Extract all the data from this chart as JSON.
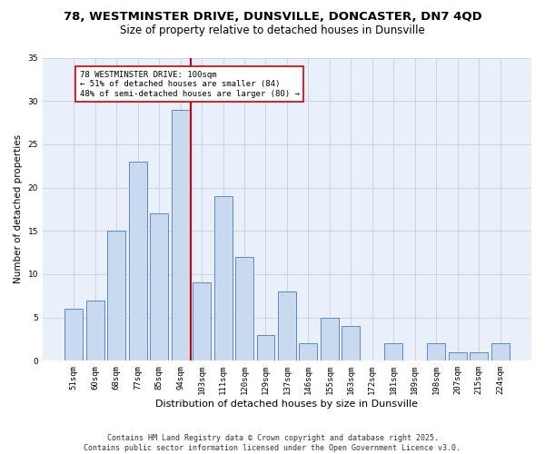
{
  "title_line1": "78, WESTMINSTER DRIVE, DUNSVILLE, DONCASTER, DN7 4QD",
  "title_line2": "Size of property relative to detached houses in Dunsville",
  "xlabel": "Distribution of detached houses by size in Dunsville",
  "ylabel": "Number of detached properties",
  "categories": [
    "51sqm",
    "60sqm",
    "68sqm",
    "77sqm",
    "85sqm",
    "94sqm",
    "103sqm",
    "111sqm",
    "120sqm",
    "129sqm",
    "137sqm",
    "146sqm",
    "155sqm",
    "163sqm",
    "172sqm",
    "181sqm",
    "189sqm",
    "198sqm",
    "207sqm",
    "215sqm",
    "224sqm"
  ],
  "values": [
    6,
    7,
    15,
    23,
    17,
    29,
    9,
    19,
    12,
    3,
    8,
    2,
    5,
    4,
    0,
    2,
    0,
    2,
    1,
    1,
    2
  ],
  "bar_color": "#c9d9f0",
  "bar_edge_color": "#5b8ac7",
  "vline_color": "#cc0000",
  "annotation_text": "78 WESTMINSTER DRIVE: 100sqm\n← 51% of detached houses are smaller (84)\n48% of semi-detached houses are larger (80) →",
  "annotation_box_color": "#ffffff",
  "annotation_box_edge": "#cc0000",
  "ylim": [
    0,
    35
  ],
  "yticks": [
    0,
    5,
    10,
    15,
    20,
    25,
    30,
    35
  ],
  "footer": "Contains HM Land Registry data © Crown copyright and database right 2025.\nContains public sector information licensed under the Open Government Licence v3.0.",
  "background_color": "#ffffff",
  "plot_bg_color": "#eaf0fa",
  "grid_color": "#c8d4e8"
}
